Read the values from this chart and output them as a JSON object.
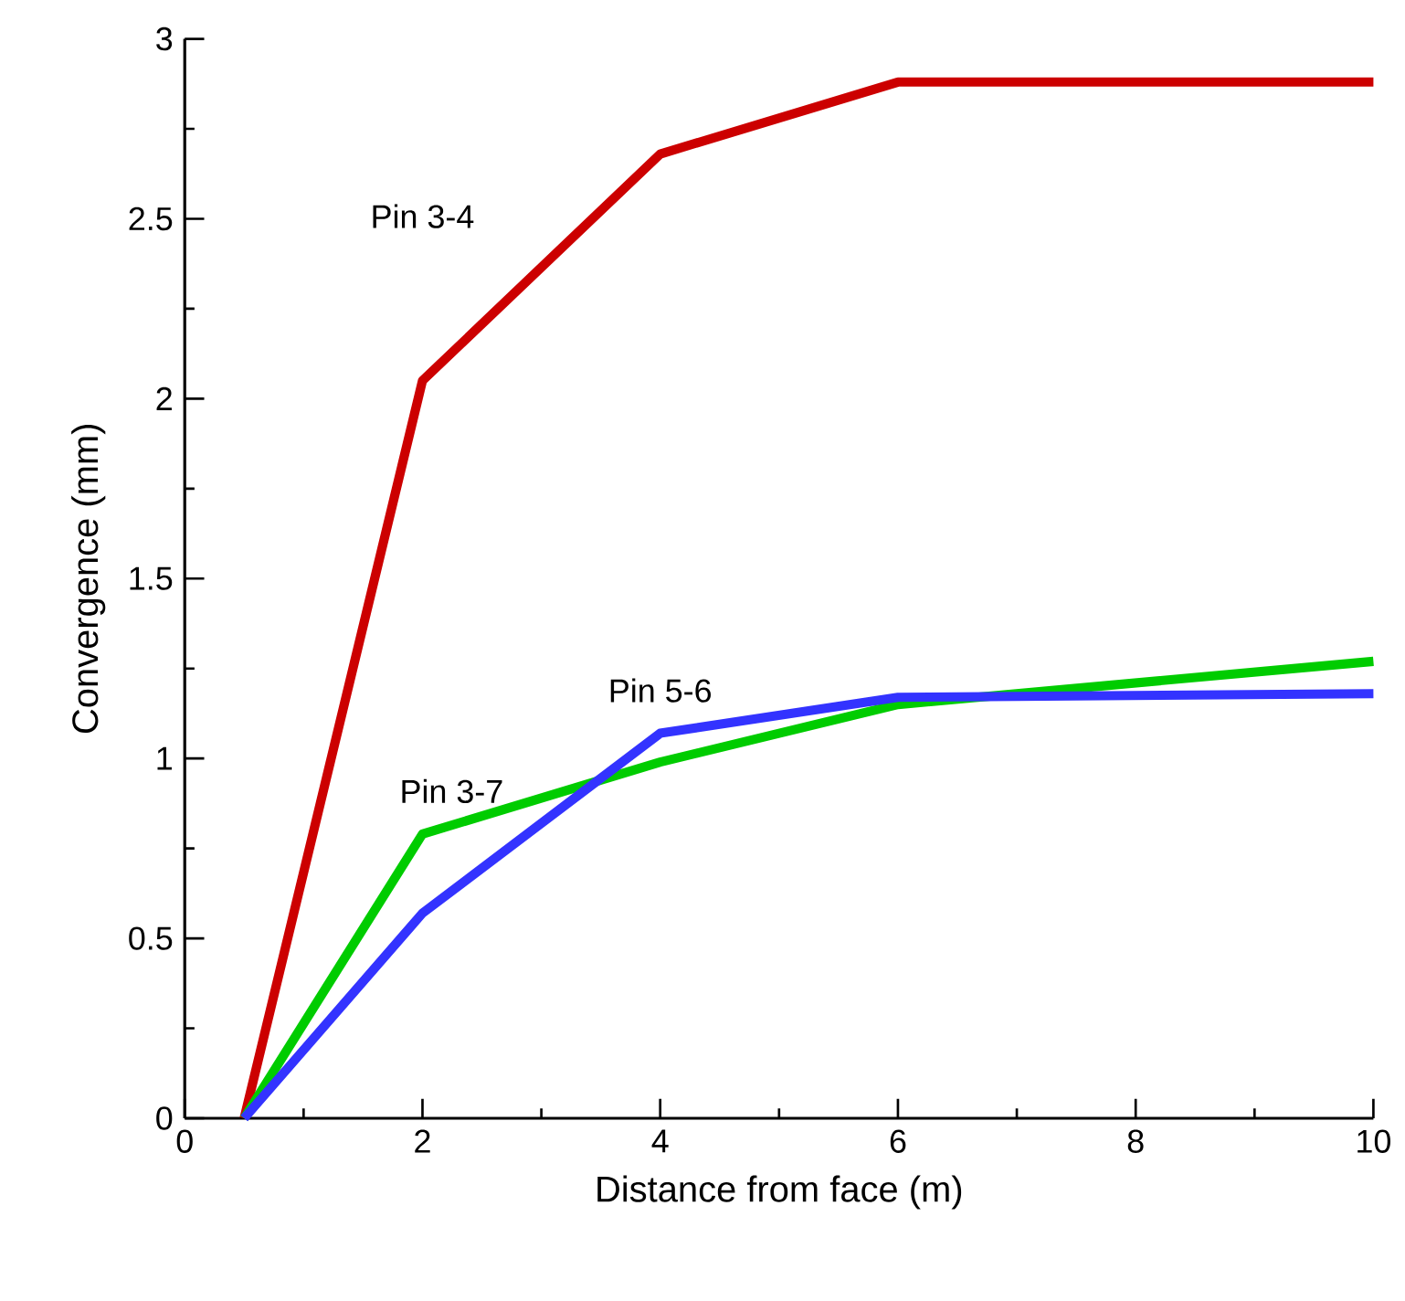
{
  "chart_data": {
    "type": "line",
    "xlabel": "Distance from face (m)",
    "ylabel": "Convergence (mm)",
    "xlim": [
      0,
      10
    ],
    "ylim": [
      0,
      3
    ],
    "xticks": [
      0,
      2,
      4,
      6,
      8,
      10
    ],
    "yticks": [
      0,
      0.5,
      1,
      1.5,
      2,
      2.5,
      3
    ],
    "grid": false,
    "marker": "none",
    "line_style": "solid",
    "series": [
      {
        "name": "Pin 3-4",
        "color": "#cc0000",
        "x": [
          0.5,
          2,
          4,
          6,
          10
        ],
        "values": [
          0,
          2.05,
          2.68,
          2.88,
          2.88
        ]
      },
      {
        "name": "Pin 3-7",
        "color": "#00cc00",
        "x": [
          0.5,
          2,
          4,
          6,
          10
        ],
        "values": [
          0,
          0.79,
          0.99,
          1.15,
          1.27
        ]
      },
      {
        "name": "Pin 5-6",
        "color": "#3333ff",
        "x": [
          0.5,
          2,
          4,
          6,
          10
        ],
        "values": [
          0,
          0.57,
          1.07,
          1.17,
          1.18
        ]
      }
    ]
  }
}
